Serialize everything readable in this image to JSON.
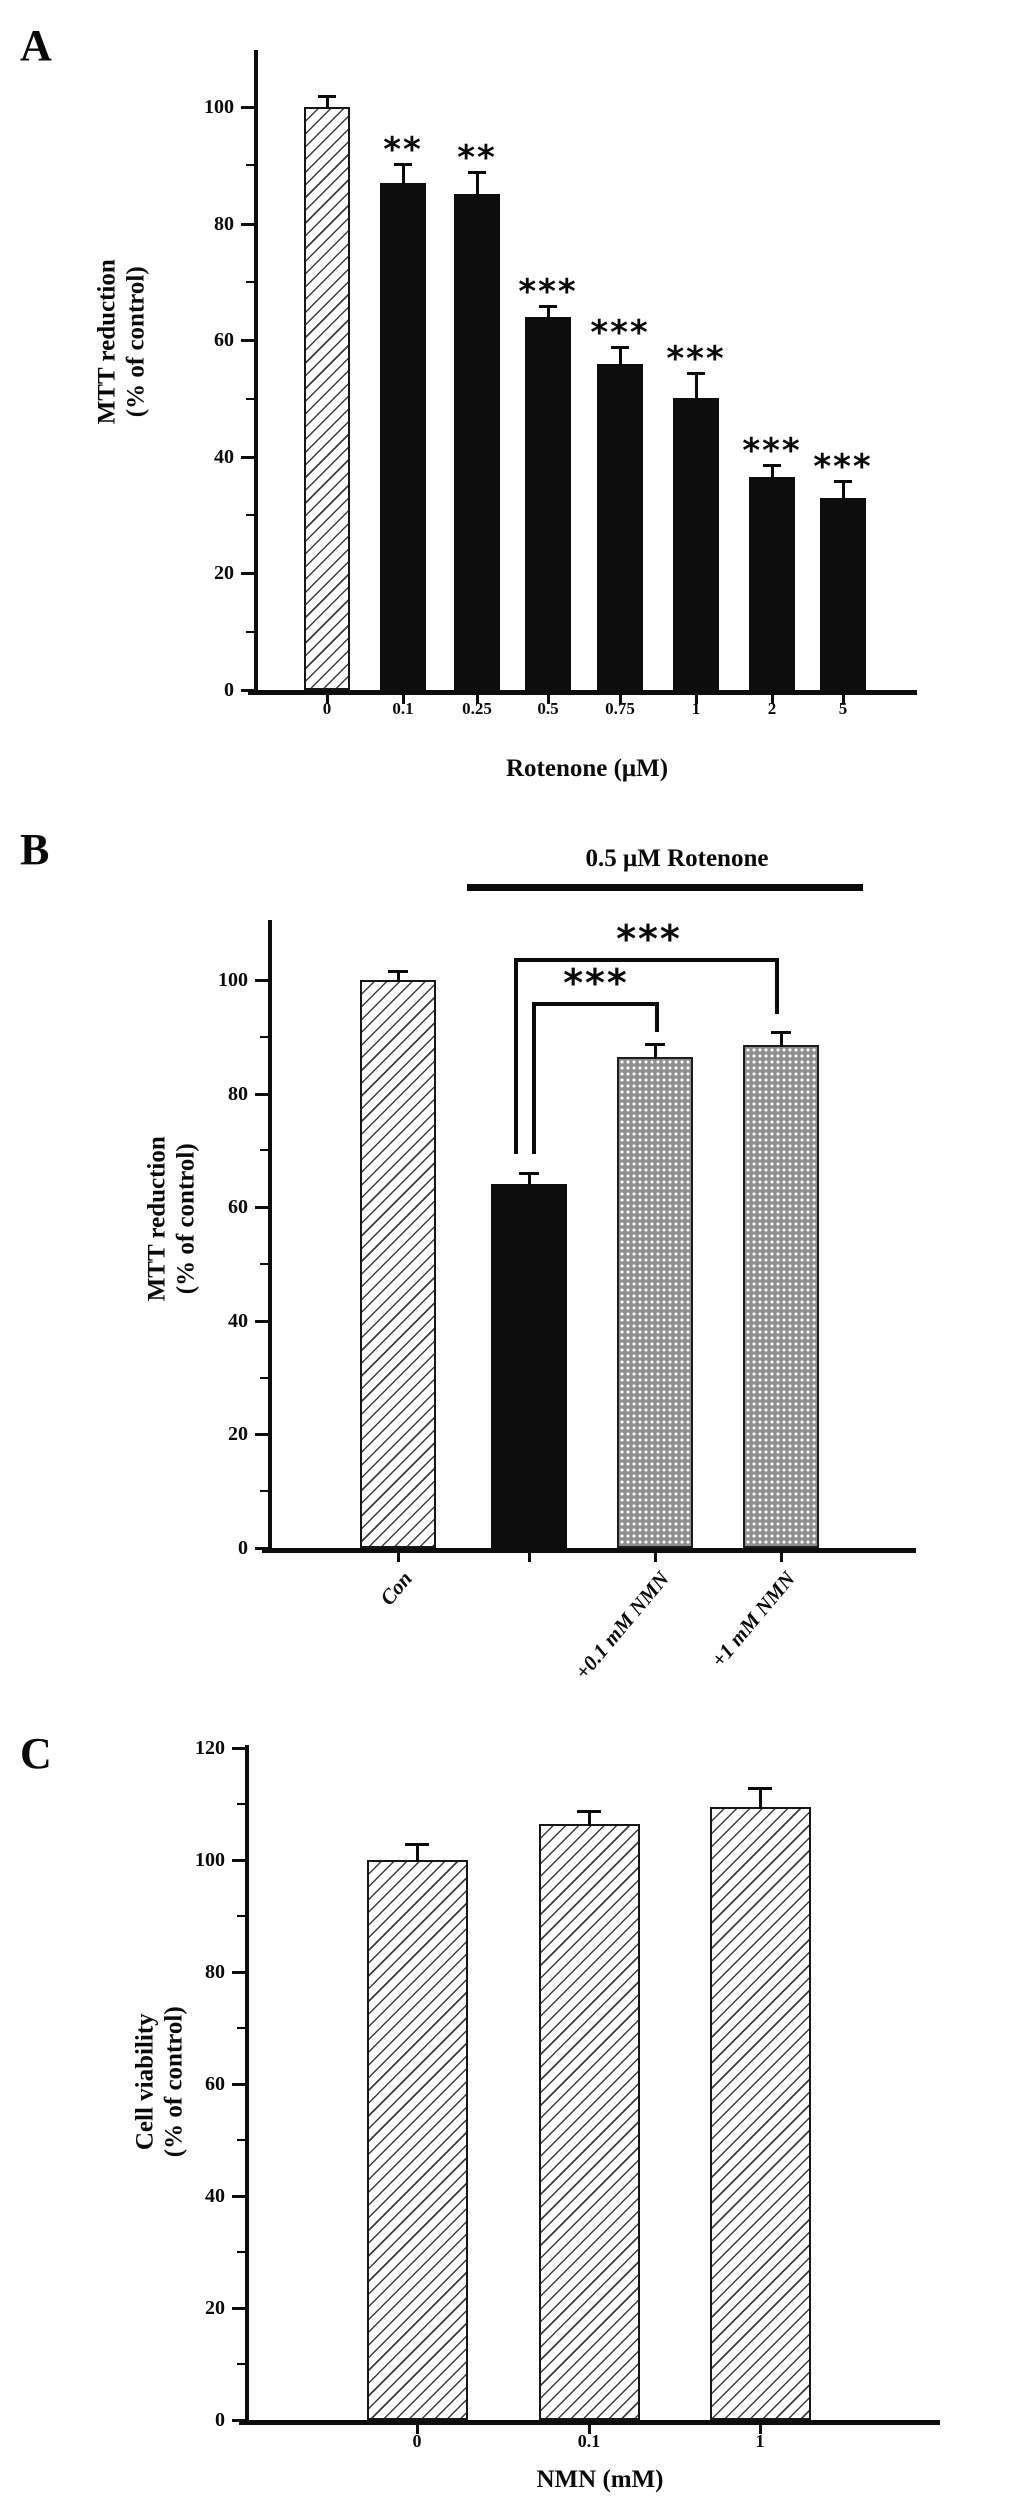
{
  "chart_data": [
    {
      "type": "bar",
      "panel_letter": "A",
      "ylabel_lines": [
        "MTT reduction",
        "(% of control)"
      ],
      "xlabel": "Rotenone (μM)",
      "categories": [
        "0",
        "0.1",
        "0.25",
        "0.5",
        "0.75",
        "1",
        "2",
        "5"
      ],
      "values": [
        100,
        87,
        85,
        64,
        56,
        50,
        36.5,
        33
      ],
      "errors": [
        1.5,
        3,
        3.5,
        1.5,
        2.5,
        4,
        1.7,
        2.5
      ],
      "significance": [
        "",
        "**",
        "**",
        "***",
        "***",
        "***",
        "***",
        "***"
      ],
      "bar_styles": [
        "hatched",
        "black",
        "black",
        "black",
        "black",
        "black",
        "black",
        "black"
      ],
      "yticks": [
        0,
        20,
        40,
        60,
        80,
        100
      ],
      "ylim": [
        0,
        110
      ],
      "grid": false,
      "legend": "none"
    },
    {
      "type": "bar",
      "panel_letter": "B",
      "title": "0.5 μM Rotenone",
      "ylabel_lines": [
        "MTT reduction",
        "(% of control)"
      ],
      "xlabel": "",
      "categories": [
        "Con",
        "",
        "+0.1 mM NMN",
        "+1 mM NMN"
      ],
      "values": [
        100,
        64,
        86.5,
        88.5
      ],
      "errors": [
        1.2,
        1.5,
        2,
        2
      ],
      "significance": [
        "",
        "",
        "",
        ""
      ],
      "bar_styles": [
        "hatched",
        "black",
        "dotted",
        "dotted"
      ],
      "yticks": [
        0,
        20,
        40,
        60,
        80,
        100
      ],
      "ylim": [
        0,
        112
      ],
      "grid": false,
      "legend": "none",
      "comparisons": [
        {
          "from": "rotenone-only",
          "to": "+0.1 mM NMN",
          "label": "***"
        },
        {
          "from": "rotenone-only",
          "to": "+1 mM NMN",
          "label": "***"
        }
      ]
    },
    {
      "type": "bar",
      "panel_letter": "C",
      "ylabel_lines": [
        "Cell viability",
        "(% of control)"
      ],
      "xlabel": "NMN (mM)",
      "categories": [
        "0",
        "0.1",
        "1"
      ],
      "values": [
        100,
        106.5,
        109.5
      ],
      "errors": [
        2.5,
        2,
        3
      ],
      "significance": [
        "",
        "",
        ""
      ],
      "bar_styles": [
        "hatched",
        "hatched",
        "hatched"
      ],
      "yticks": [
        0,
        20,
        40,
        60,
        80,
        100,
        120
      ],
      "ylim": [
        0,
        122
      ],
      "grid": false,
      "legend": "none"
    }
  ]
}
